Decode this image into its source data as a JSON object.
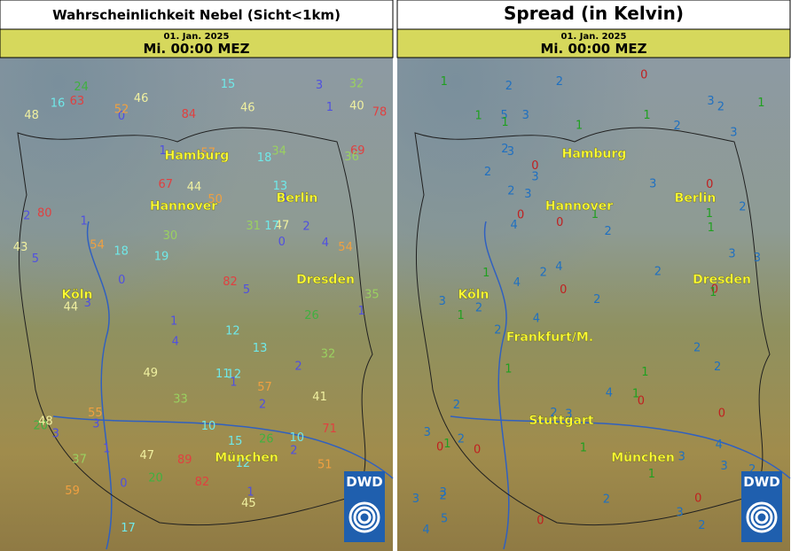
{
  "panels": [
    {
      "title": "Wahrscheinlichkeit Nebel (Sicht<1km)",
      "date": "01. Jan. 2025",
      "time": "Mi. 00:00 MEZ",
      "cities": [
        "Hamburg",
        "Hannover",
        "Berlin",
        "Köln",
        "Dresden",
        "München"
      ],
      "stations": [
        "1",
        "0",
        "3",
        "1",
        "2",
        "12",
        "1",
        "0",
        "4",
        "1",
        "3",
        "2",
        "1",
        "12",
        "0",
        "3",
        "5",
        "1",
        "2",
        "4",
        "10",
        "1",
        "0",
        "2",
        "5",
        "1",
        "3",
        "54",
        "82",
        "1",
        "2",
        "32",
        "34",
        "47",
        "46",
        "89",
        "15",
        "80",
        "35",
        "57",
        "84",
        "82",
        "78",
        "71",
        "46",
        "32",
        "11",
        "33",
        "12",
        "40",
        "49",
        "50",
        "18",
        "13",
        "48",
        "22",
        "51",
        "30",
        "17",
        "20",
        "43",
        "45",
        "47",
        "44",
        "52",
        "59",
        "63",
        "15",
        "26",
        "19",
        "54",
        "31",
        "37",
        "57",
        "20",
        "41",
        "26",
        "55",
        "17",
        "48",
        "44",
        "16",
        "18",
        "10",
        "67",
        "69",
        "13",
        "36",
        "24"
      ]
    },
    {
      "title": "Spread (in Kelvin)",
      "date": "01. Jan. 2025",
      "time": "Mi. 00:00 MEZ",
      "cities": [
        "Hamburg",
        "Hannover",
        "Berlin",
        "Köln",
        "Dresden",
        "Frankfurt/M.",
        "Stuttgart",
        "München"
      ],
      "stations": [
        "2",
        "3",
        "1",
        "2",
        "0",
        "2",
        "3",
        "2",
        "1",
        "2",
        "4",
        "3",
        "2",
        "2",
        "3",
        "4",
        "2",
        "1",
        "3",
        "2",
        "4",
        "5",
        "3",
        "2",
        "0",
        "1",
        "2",
        "3",
        "0",
        "1",
        "0",
        "4",
        "3",
        "2",
        "1",
        "0",
        "1",
        "0",
        "2",
        "3",
        "1",
        "0",
        "2",
        "1",
        "3",
        "4",
        "0",
        "1",
        "2",
        "3",
        "0",
        "1",
        "2",
        "3",
        "1",
        "0",
        "2",
        "1",
        "3",
        "4",
        "2",
        "1",
        "0",
        "3",
        "2",
        "1",
        "4",
        "3",
        "2",
        "0",
        "1",
        "2",
        "3",
        "5",
        "1",
        "2",
        "0",
        "3",
        "2",
        "1"
      ]
    }
  ],
  "logo": "DWD"
}
